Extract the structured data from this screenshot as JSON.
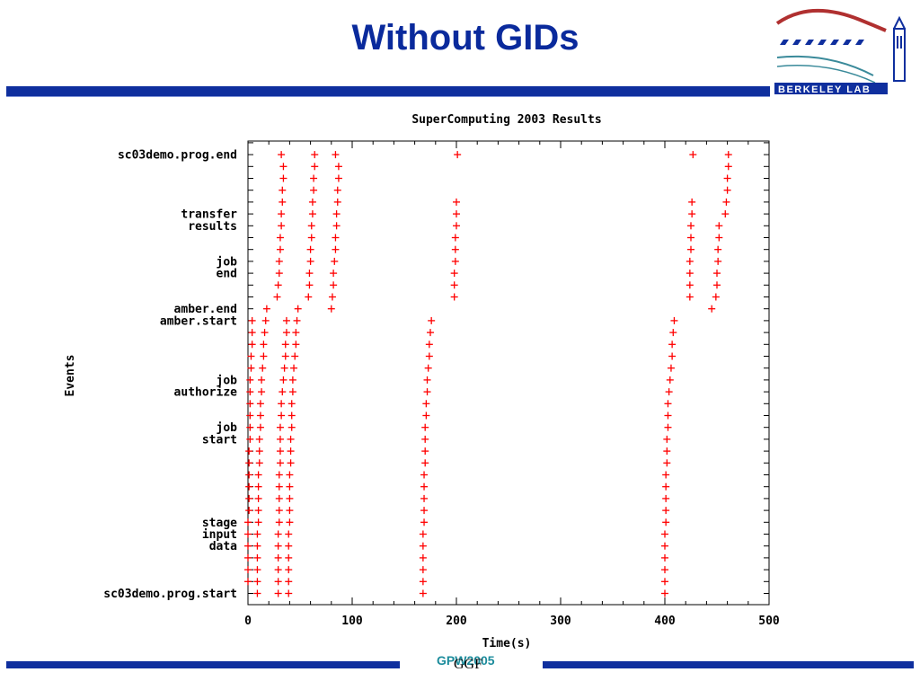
{
  "slide": {
    "title": "Without GIDs",
    "logo_text": "BERKELEY LAB",
    "footer_conference": "GPW2005",
    "footer_org": "GGF"
  },
  "colors": {
    "title": "#0a2a9c",
    "bar": "#0f2f9e",
    "marker": "#ff0000",
    "footer_conference": "#1c8c9c"
  },
  "chart_data": {
    "type": "scatter",
    "title": "SuperComputing 2003 Results",
    "xlabel": "Time(s)",
    "ylabel": "Events",
    "xlim": [
      0,
      500
    ],
    "x_ticks": [
      0,
      100,
      200,
      300,
      400,
      500
    ],
    "y_levels": 39,
    "y_tick_labels": [
      {
        "level": 1,
        "lines": [
          "sc03demo.prog.start"
        ]
      },
      {
        "level": 5,
        "lines": [
          "stage",
          "input",
          "data"
        ]
      },
      {
        "level": 14,
        "lines": [
          "job",
          "start"
        ]
      },
      {
        "level": 18,
        "lines": [
          "job",
          "authorize"
        ]
      },
      {
        "level": 24,
        "lines": [
          "amber.start"
        ]
      },
      {
        "level": 25,
        "lines": [
          "amber.end"
        ]
      },
      {
        "level": 28,
        "lines": [
          "job",
          "end"
        ]
      },
      {
        "level": 32,
        "lines": [
          "transfer",
          "results"
        ]
      },
      {
        "level": 38,
        "lines": [
          "sc03demo.prog.end"
        ]
      }
    ],
    "marker": "+",
    "series": [
      {
        "points": [
          [
            0,
            2
          ],
          [
            0,
            3
          ],
          [
            0,
            4
          ],
          [
            0,
            5
          ],
          [
            0,
            6
          ],
          [
            0,
            7
          ],
          [
            1,
            8
          ],
          [
            1,
            9
          ],
          [
            1,
            10
          ],
          [
            1,
            11
          ],
          [
            1,
            12
          ],
          [
            1,
            13
          ],
          [
            2,
            14
          ],
          [
            2,
            15
          ],
          [
            2,
            16
          ],
          [
            2,
            17
          ],
          [
            2,
            18
          ],
          [
            2,
            19
          ],
          [
            3,
            20
          ],
          [
            3,
            21
          ],
          [
            4,
            22
          ],
          [
            4,
            23
          ],
          [
            4,
            24
          ],
          [
            9,
            1
          ],
          [
            9,
            2
          ],
          [
            9,
            3
          ],
          [
            9,
            4
          ],
          [
            9,
            5
          ],
          [
            9,
            6
          ],
          [
            10,
            7
          ],
          [
            10,
            8
          ],
          [
            10,
            9
          ],
          [
            10,
            10
          ],
          [
            10,
            11
          ],
          [
            11,
            12
          ],
          [
            11,
            13
          ],
          [
            11,
            14
          ],
          [
            12,
            15
          ],
          [
            12,
            16
          ],
          [
            12,
            17
          ],
          [
            13,
            18
          ],
          [
            13,
            19
          ],
          [
            14,
            20
          ],
          [
            15,
            21
          ],
          [
            15,
            22
          ],
          [
            16,
            23
          ],
          [
            17,
            24
          ],
          [
            18,
            25
          ],
          [
            29,
            1
          ],
          [
            29,
            2
          ],
          [
            29,
            3
          ],
          [
            29,
            4
          ],
          [
            29,
            5
          ],
          [
            29,
            6
          ],
          [
            30,
            7
          ],
          [
            30,
            8
          ],
          [
            30,
            9
          ],
          [
            30,
            10
          ],
          [
            30,
            11
          ],
          [
            31,
            12
          ],
          [
            31,
            13
          ],
          [
            31,
            14
          ],
          [
            31,
            15
          ],
          [
            32,
            16
          ],
          [
            32,
            17
          ],
          [
            33,
            18
          ],
          [
            34,
            19
          ],
          [
            35,
            20
          ],
          [
            36,
            21
          ],
          [
            36,
            22
          ],
          [
            37,
            23
          ],
          [
            37,
            24
          ],
          [
            39,
            1
          ],
          [
            39,
            2
          ],
          [
            39,
            3
          ],
          [
            39,
            4
          ],
          [
            39,
            5
          ],
          [
            39,
            6
          ],
          [
            40,
            7
          ],
          [
            40,
            8
          ],
          [
            40,
            9
          ],
          [
            40,
            10
          ],
          [
            40,
            11
          ],
          [
            41,
            12
          ],
          [
            41,
            13
          ],
          [
            41,
            14
          ],
          [
            42,
            15
          ],
          [
            42,
            16
          ],
          [
            42,
            17
          ],
          [
            43,
            18
          ],
          [
            43,
            19
          ],
          [
            44,
            20
          ],
          [
            45,
            21
          ],
          [
            46,
            22
          ],
          [
            46,
            23
          ],
          [
            47,
            24
          ],
          [
            48,
            25
          ],
          [
            28,
            26
          ],
          [
            29,
            27
          ],
          [
            30,
            28
          ],
          [
            30,
            29
          ],
          [
            31,
            30
          ],
          [
            31,
            31
          ],
          [
            32,
            32
          ],
          [
            32,
            33
          ],
          [
            33,
            34
          ],
          [
            33,
            35
          ],
          [
            34,
            36
          ],
          [
            34,
            37
          ],
          [
            32,
            38
          ],
          [
            58,
            26
          ],
          [
            59,
            27
          ],
          [
            59,
            28
          ],
          [
            60,
            29
          ],
          [
            60,
            30
          ],
          [
            61,
            31
          ],
          [
            61,
            32
          ],
          [
            62,
            33
          ],
          [
            62,
            34
          ],
          [
            63,
            35
          ],
          [
            63,
            36
          ],
          [
            64,
            37
          ],
          [
            64,
            38
          ],
          [
            80,
            25
          ],
          [
            81,
            26
          ],
          [
            82,
            27
          ],
          [
            82,
            28
          ],
          [
            83,
            29
          ],
          [
            84,
            30
          ],
          [
            84,
            31
          ],
          [
            85,
            32
          ],
          [
            85,
            33
          ],
          [
            86,
            34
          ],
          [
            86,
            35
          ],
          [
            87,
            36
          ],
          [
            87,
            37
          ],
          [
            84,
            38
          ],
          [
            168,
            1
          ],
          [
            168,
            2
          ],
          [
            168,
            3
          ],
          [
            168,
            4
          ],
          [
            168,
            5
          ],
          [
            168,
            6
          ],
          [
            169,
            7
          ],
          [
            169,
            8
          ],
          [
            169,
            9
          ],
          [
            169,
            10
          ],
          [
            169,
            11
          ],
          [
            170,
            12
          ],
          [
            170,
            13
          ],
          [
            170,
            14
          ],
          [
            170,
            15
          ],
          [
            171,
            16
          ],
          [
            171,
            17
          ],
          [
            172,
            18
          ],
          [
            172,
            19
          ],
          [
            173,
            20
          ],
          [
            174,
            21
          ],
          [
            174,
            22
          ],
          [
            175,
            23
          ],
          [
            176,
            24
          ],
          [
            198,
            26
          ],
          [
            198,
            27
          ],
          [
            198,
            28
          ],
          [
            199,
            29
          ],
          [
            199,
            30
          ],
          [
            199,
            31
          ],
          [
            200,
            32
          ],
          [
            200,
            33
          ],
          [
            200,
            34
          ],
          [
            201,
            38
          ],
          [
            400,
            1
          ],
          [
            400,
            2
          ],
          [
            400,
            3
          ],
          [
            400,
            4
          ],
          [
            400,
            5
          ],
          [
            400,
            6
          ],
          [
            401,
            7
          ],
          [
            401,
            8
          ],
          [
            401,
            9
          ],
          [
            401,
            10
          ],
          [
            401,
            11
          ],
          [
            402,
            12
          ],
          [
            402,
            13
          ],
          [
            402,
            14
          ],
          [
            403,
            15
          ],
          [
            403,
            16
          ],
          [
            403,
            17
          ],
          [
            404,
            18
          ],
          [
            405,
            19
          ],
          [
            406,
            20
          ],
          [
            407,
            21
          ],
          [
            407,
            22
          ],
          [
            408,
            23
          ],
          [
            409,
            24
          ],
          [
            424,
            26
          ],
          [
            424,
            27
          ],
          [
            424,
            28
          ],
          [
            424,
            29
          ],
          [
            425,
            30
          ],
          [
            425,
            31
          ],
          [
            425,
            32
          ],
          [
            426,
            33
          ],
          [
            426,
            34
          ],
          [
            427,
            38
          ],
          [
            445,
            25
          ],
          [
            449,
            26
          ],
          [
            450,
            27
          ],
          [
            450,
            28
          ],
          [
            451,
            29
          ],
          [
            451,
            30
          ],
          [
            452,
            31
          ],
          [
            452,
            32
          ],
          [
            458,
            33
          ],
          [
            459,
            34
          ],
          [
            460,
            35
          ],
          [
            460,
            36
          ],
          [
            461,
            37
          ],
          [
            461,
            38
          ]
        ]
      }
    ]
  }
}
